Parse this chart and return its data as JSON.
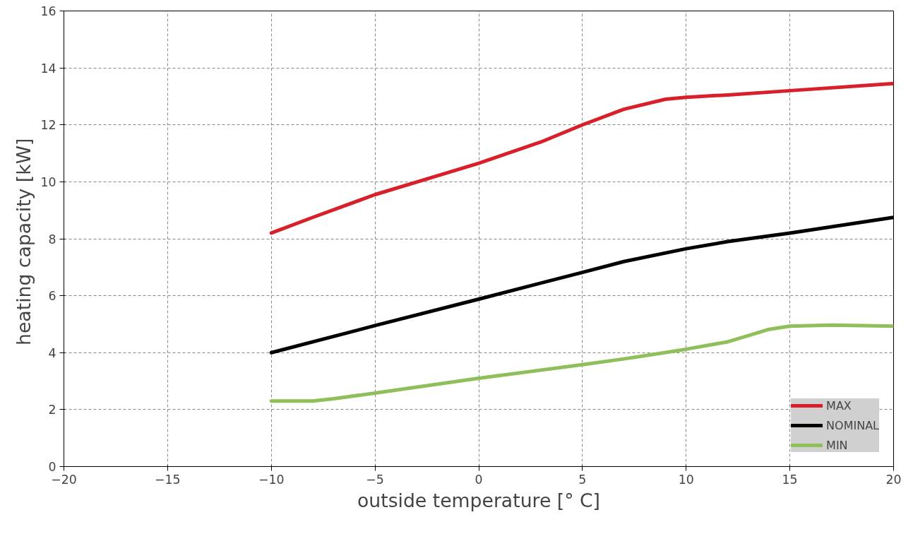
{
  "chart_data": {
    "type": "line",
    "xlabel": "outside temperature [° C]",
    "ylabel": "heating capacity  [kW]",
    "xlim": [
      -20,
      20
    ],
    "ylim": [
      0,
      16
    ],
    "xticks": [
      -20,
      -15,
      -10,
      -5,
      0,
      5,
      10,
      15,
      20
    ],
    "yticks": [
      0,
      2,
      4,
      6,
      8,
      10,
      12,
      14,
      16
    ],
    "grid": true,
    "legend": "bottom right",
    "line_style": "solid",
    "marker": "none",
    "series": [
      {
        "name": "MAX",
        "color": "#d7202a",
        "x": [
          -10,
          -8,
          -5,
          0,
          3,
          5,
          7,
          9,
          10,
          12,
          15,
          20
        ],
        "values": [
          8.2,
          8.75,
          9.55,
          10.65,
          11.4,
          12.0,
          12.55,
          12.9,
          12.97,
          13.05,
          13.2,
          13.45
        ]
      },
      {
        "name": "NOMINAL",
        "color": "#000000",
        "x": [
          -10,
          -5,
          0,
          5,
          7,
          10,
          12,
          15,
          20
        ],
        "values": [
          4.0,
          4.95,
          5.88,
          6.82,
          7.2,
          7.65,
          7.9,
          8.2,
          8.75
        ]
      },
      {
        "name": "MIN",
        "color": "#8fbf5a",
        "x": [
          -10,
          -8,
          -7,
          -5,
          0,
          5,
          7,
          10,
          12,
          13,
          14,
          15,
          17,
          20
        ],
        "values": [
          2.3,
          2.3,
          2.38,
          2.58,
          3.1,
          3.58,
          3.78,
          4.12,
          4.38,
          4.6,
          4.82,
          4.93,
          4.97,
          4.93
        ]
      }
    ]
  }
}
